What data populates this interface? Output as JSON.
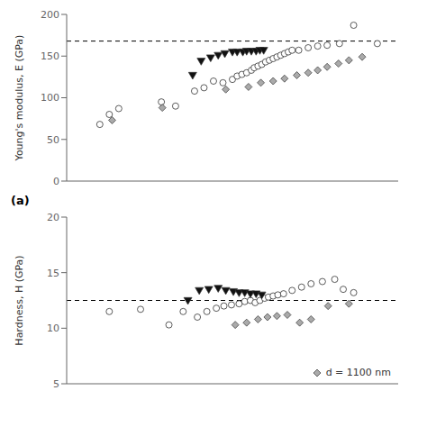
{
  "chart_data": [
    {
      "type": "scatter",
      "ylabel": "Young's modulus, E (GPa)",
      "annotation": "(a)",
      "xlim": [
        160,
        510
      ],
      "ylim": [
        0,
        200
      ],
      "yticks": [
        0,
        50,
        100,
        150,
        200
      ],
      "grid": false,
      "tick_labels": "y",
      "reference_line": {
        "y": 168,
        "color": "black",
        "line_style": "dashed"
      },
      "series": [
        {
          "color": "white",
          "marker": "circle",
          "x": [
            195,
            205,
            215,
            260,
            275,
            295,
            305,
            315,
            325,
            335,
            340,
            345,
            350,
            355,
            358,
            362,
            366,
            370,
            374,
            378,
            382,
            386,
            390,
            394,
            398,
            405,
            415,
            425,
            435,
            448,
            463,
            488
          ],
          "values": [
            68,
            80,
            87,
            95,
            90,
            108,
            112,
            120,
            118,
            122,
            126,
            128,
            130,
            133,
            136,
            138,
            140,
            143,
            145,
            147,
            149,
            151,
            153,
            155,
            157,
            157,
            160,
            162,
            163,
            165,
            187,
            165
          ]
        },
        {
          "color": "#111111",
          "marker": "triangle_down",
          "x": [
            293,
            302,
            312,
            320,
            327,
            335,
            340,
            346,
            350,
            355,
            360,
            364,
            368
          ],
          "values": [
            127,
            144,
            148,
            151,
            153,
            155,
            155,
            155,
            156,
            156,
            156,
            157,
            157
          ]
        },
        {
          "color": "#aaaaaa",
          "marker": "diamond",
          "x": [
            208,
            261,
            328,
            352,
            365,
            378,
            390,
            403,
            415,
            425,
            435,
            447,
            458,
            472
          ],
          "values": [
            73,
            88,
            110,
            113,
            118,
            120,
            123,
            127,
            130,
            133,
            137,
            141,
            145,
            149
          ]
        }
      ]
    },
    {
      "type": "scatter",
      "ylabel": "Hardness, H (GPa)",
      "xlim": [
        160,
        510
      ],
      "ylim": [
        5,
        20
      ],
      "yticks": [
        5,
        10,
        15,
        20
      ],
      "grid": false,
      "tick_labels": "y",
      "legend": "lower right",
      "reference_line": {
        "y": 12.5,
        "color": "black",
        "line_style": "dashed"
      },
      "series": [
        {
          "color": "white",
          "marker": "circle",
          "x": [
            205,
            238,
            268,
            283,
            298,
            308,
            318,
            326,
            334,
            342,
            348,
            354,
            359,
            364,
            369,
            373,
            378,
            383,
            389,
            398,
            408,
            418,
            430,
            443,
            452,
            463
          ],
          "values": [
            11.5,
            11.7,
            10.3,
            11.5,
            11.0,
            11.5,
            11.8,
            12.0,
            12.1,
            12.2,
            12.4,
            12.5,
            12.3,
            12.5,
            12.7,
            12.8,
            12.9,
            13.0,
            13.1,
            13.4,
            13.7,
            14.0,
            14.2,
            14.4,
            13.5,
            13.2
          ]
        },
        {
          "color": "#111111",
          "marker": "triangle_down",
          "x": [
            288,
            300,
            310,
            320,
            328,
            336,
            342,
            348,
            354,
            360,
            366
          ],
          "values": [
            12.5,
            13.4,
            13.5,
            13.6,
            13.4,
            13.3,
            13.2,
            13.2,
            13.1,
            13.1,
            13.0
          ]
        },
        {
          "name": "d = 1100 nm",
          "color": "#aaaaaa",
          "marker": "diamond",
          "x": [
            338,
            350,
            362,
            372,
            382,
            393,
            406,
            418,
            436,
            458
          ],
          "values": [
            10.3,
            10.5,
            10.8,
            11.0,
            11.1,
            11.2,
            10.5,
            10.8,
            12.0,
            12.2
          ]
        }
      ]
    }
  ]
}
